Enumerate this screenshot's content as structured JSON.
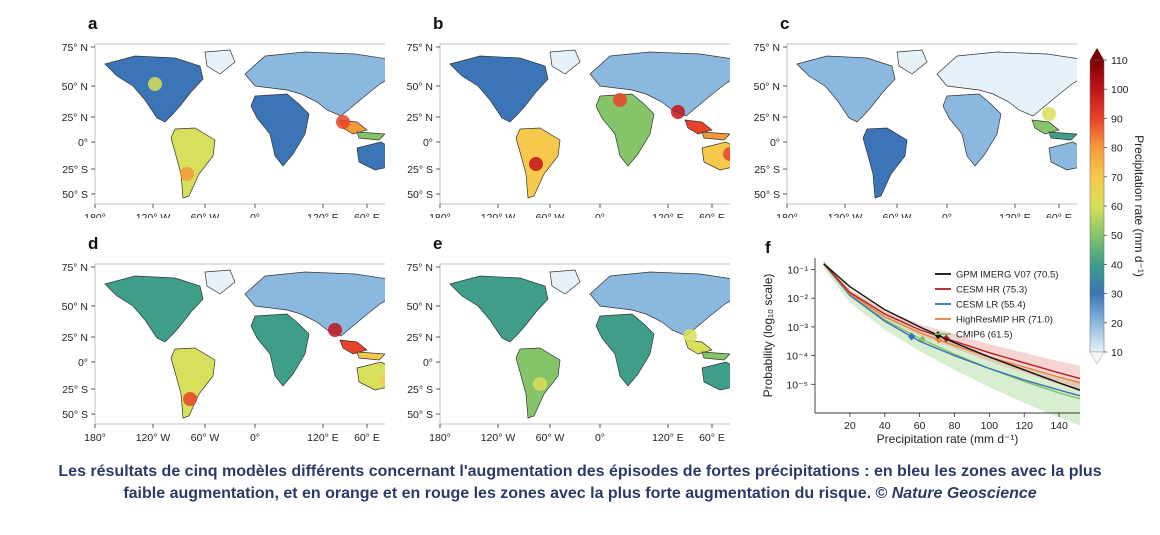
{
  "panels": [
    {
      "letter": "a"
    },
    {
      "letter": "b"
    },
    {
      "letter": "c"
    },
    {
      "letter": "d"
    },
    {
      "letter": "e"
    }
  ],
  "map_axes": {
    "lat_labels": [
      "75° N",
      "50° N",
      "25° N",
      "0°",
      "25° S",
      "50° S"
    ],
    "lon_labels": [
      "180°",
      "120° W",
      "60° W",
      "0°",
      "120° E",
      "60° E"
    ]
  },
  "colorbar": {
    "ticks": [
      "110",
      "100",
      "90",
      "80",
      "70",
      "60",
      "50",
      "40",
      "30",
      "20",
      "10"
    ],
    "label": "Precipitation rate (mm d⁻¹)",
    "colors": [
      "#7a0000",
      "#c0131b",
      "#e8432a",
      "#f59a3a",
      "#f6c94c",
      "#d8df5a",
      "#86c46a",
      "#3e9e8a",
      "#3b74b7",
      "#8bb8de",
      "#e6f1fa"
    ]
  },
  "panel_f": {
    "letter": "f",
    "ylabel": "Probability (log₁₀ scale)",
    "xlabel": "Precipitation rate (mm d⁻¹)",
    "y_ticks": [
      "10⁻¹",
      "10⁻²",
      "10⁻³",
      "10⁻⁴",
      "10⁻⁵"
    ],
    "x_ticks": [
      "20",
      "40",
      "60",
      "80",
      "100",
      "120",
      "140"
    ]
  },
  "chart_data": {
    "type": "line",
    "xlabel": "Precipitation rate (mm d⁻¹)",
    "ylabel": "Probability (log₁₀ scale)",
    "xlim": [
      0,
      152
    ],
    "ylim_log10": [
      -6,
      -0.6
    ],
    "series": [
      {
        "name": "GPM IMERG V07 (70.5)",
        "color": "#111111",
        "marker_x": 70.5,
        "x": [
          5,
          20,
          40,
          60,
          80,
          100,
          120,
          140,
          152
        ],
        "y_log10": [
          -0.8,
          -1.6,
          -2.4,
          -3.0,
          -3.55,
          -4.05,
          -4.5,
          -4.95,
          -5.2
        ]
      },
      {
        "name": "CESM HR (75.3)",
        "color": "#b3202a",
        "marker_x": 75.3,
        "x": [
          5,
          20,
          40,
          60,
          80,
          100,
          120,
          140,
          152
        ],
        "y_log10": [
          -0.8,
          -1.8,
          -2.55,
          -3.1,
          -3.5,
          -3.9,
          -4.25,
          -4.6,
          -4.8
        ]
      },
      {
        "name": "CESM LR (55.4)",
        "color": "#3a6fb0",
        "marker_x": 55.4,
        "x": [
          5,
          20,
          40,
          60,
          80,
          100,
          120,
          140,
          152
        ],
        "y_log10": [
          -0.8,
          -1.9,
          -2.8,
          -3.5,
          -4.0,
          -4.45,
          -4.85,
          -5.2,
          -5.4
        ]
      },
      {
        "name": "HighResMIP HR (71.0)",
        "color": "#e8843a",
        "marker_x": 71.0,
        "x": [
          5,
          20,
          40,
          60,
          80,
          100,
          120,
          140,
          152
        ],
        "y_log10": [
          -0.8,
          -1.85,
          -2.65,
          -3.2,
          -3.65,
          -4.05,
          -4.4,
          -4.75,
          -4.95
        ]
      },
      {
        "name": "CMIP6 (61.5)",
        "color": "#7fc06a",
        "marker_x": 61.5,
        "x": [
          5,
          20,
          40,
          60,
          80,
          100,
          120,
          140,
          152
        ],
        "y_log10": [
          -0.8,
          -1.9,
          -2.75,
          -3.4,
          -3.95,
          -4.45,
          -4.9,
          -5.3,
          -5.5
        ]
      }
    ]
  },
  "caption": {
    "main": "Les résultats de cinq modèles différents concernant l'augmentation des épisodes de fortes précipitations : en bleu les zones avec la plus faible augmentation, et en orange et en rouge les zones avec la plus forte augmentation du risque. © ",
    "source": "Nature Geoscience"
  }
}
